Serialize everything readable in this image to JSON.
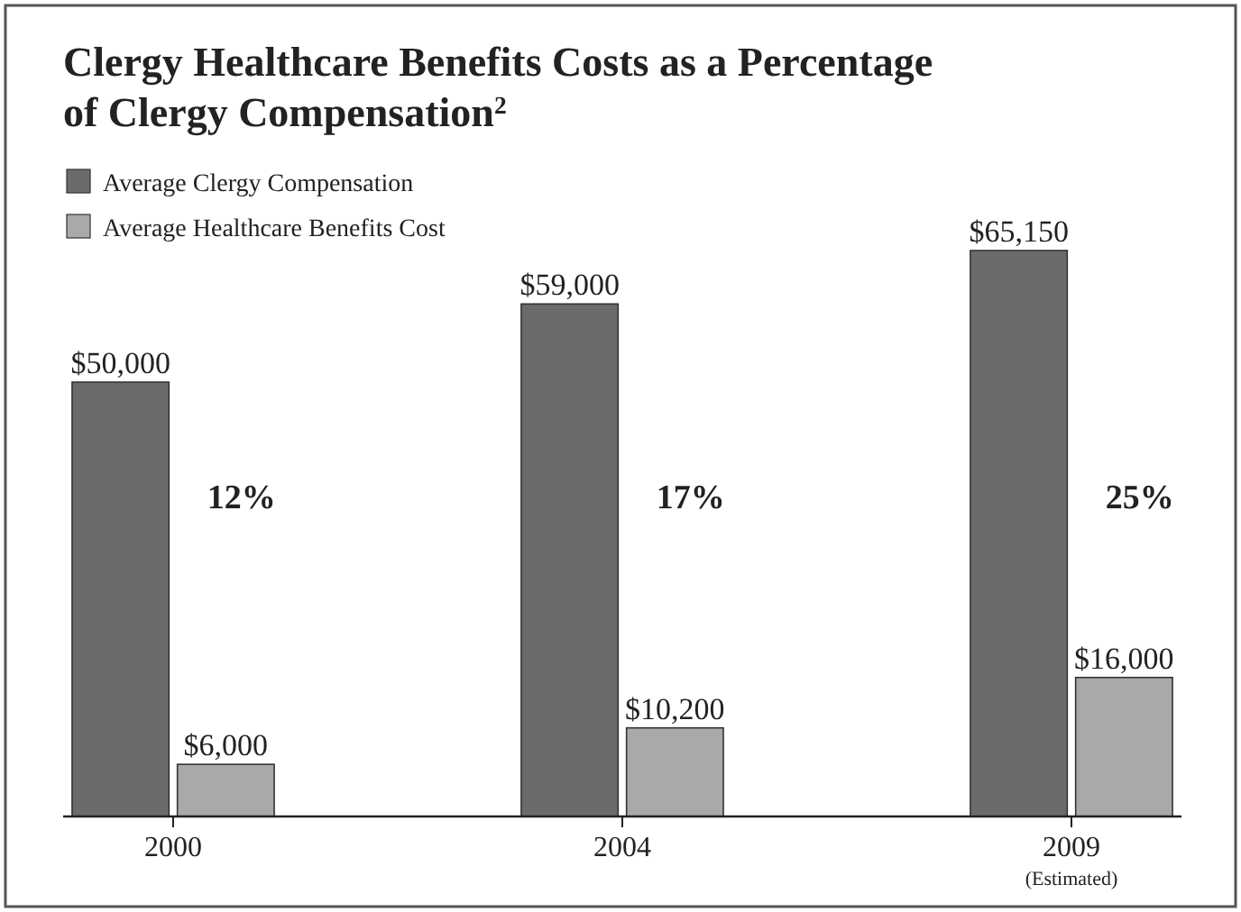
{
  "chart_data": {
    "type": "bar",
    "title": "Clergy Healthcare Benefits Costs as a Percentage of Clergy Compensation$^{2}$",
    "categories": [
      "2000",
      "2004",
      "2009"
    ],
    "series": [
      {
        "name": "Average Clergy Compensation",
        "color": "#6b6b6b",
        "values": [
          50000,
          59000,
          65150
        ],
        "value_labels": [
          "$50,000",
          "$59,000",
          "$65,150"
        ]
      },
      {
        "name": "Average Healthcare Benefits Cost",
        "color": "#a9a9a9",
        "values": [
          6000,
          10200,
          16000
        ],
        "value_labels": [
          "$6,000",
          "$10,200",
          "$16,000"
        ]
      }
    ],
    "legend": "top left",
    "annotations": [
      {
        "text": "12%",
        "x": "2000"
      },
      {
        "text": "17%",
        "x": "2004"
      },
      {
        "text": "25%",
        "x": "2009"
      },
      "(Estimated)"
    ]
  }
}
